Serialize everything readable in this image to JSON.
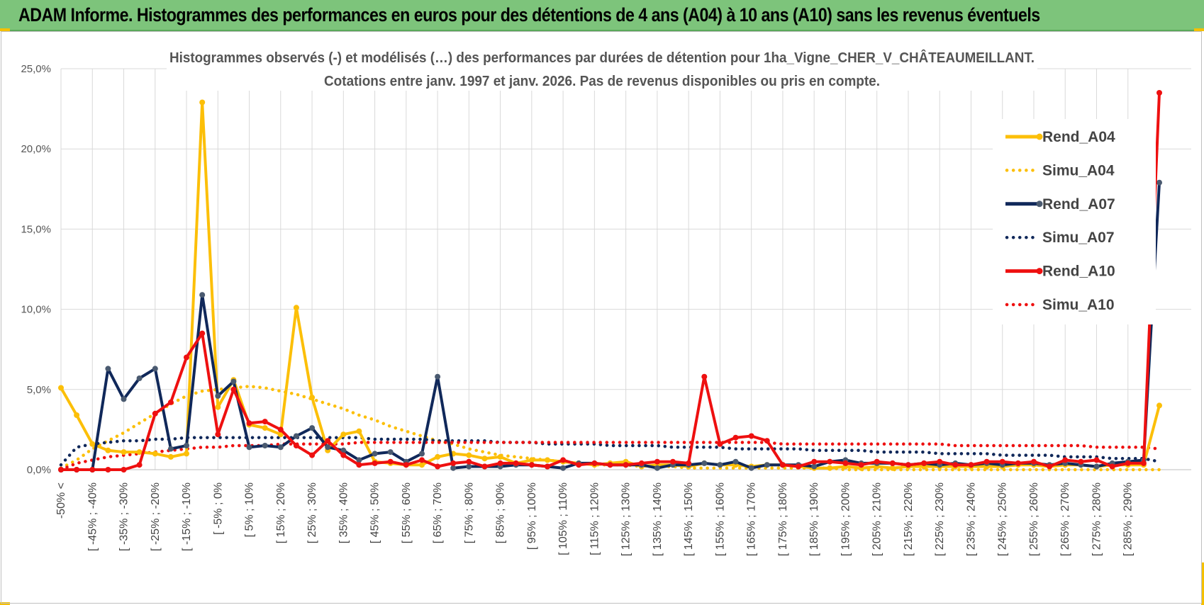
{
  "banner": {
    "title": "ADAM Informe. Histogrammes des performances en euros pour des détentions de 4 ans (A04) à 10 ans (A10) sans les revenus éventuels"
  },
  "colors": {
    "banner_bg": "#7dc47b",
    "corner_accent": "#f5c000",
    "A04": "#fcbf08",
    "A07": "#10285a",
    "A10": "#ee1010",
    "grid": "#d9d9d9"
  },
  "chart_data": {
    "type": "line",
    "title_line1": "Histogrammes observés (-) et modélisés (…) des performances par durées de détention pour 1ha_Vigne_CHER_V_CHÂTEAUMEILLANT.",
    "title_line2": "Cotations entre janv. 1997 et janv. 2026. Pas de revenus disponibles ou pris en compte.",
    "ylim": [
      0,
      25
    ],
    "y_ticks": [
      "0,0%",
      "5,0%",
      "10,0%",
      "15,0%",
      "20,0%",
      "25,0%"
    ],
    "x_tick_labels": [
      "-50% <",
      "[ -45% ; -40%",
      "[ -35% ; -30%",
      "[ -25% ; -20%",
      "[ -15% ; -10%",
      "[ -5% ; 0%",
      "[ 5% ; 10%",
      "[ 15% ; 20%",
      "[ 25% ; 30%",
      "[ 35% ; 40%",
      "[ 45% ; 50%",
      "[ 55% ; 60%",
      "[ 65% ; 70%",
      "[ 75% ; 80%",
      "[ 85% ; 90%",
      "[ 95% ; 100%",
      "[ 105% ; 110%",
      "[ 115% ; 120%",
      "[ 125% ; 130%",
      "[ 135% ; 140%",
      "[ 145% ; 150%",
      "[ 155% ; 160%",
      "[ 165% ; 170%",
      "[ 175% ; 180%",
      "[ 185% ; 190%",
      "[ 195% ; 200%",
      "[ 205% ; 210%",
      "[ 215% ; 220%",
      "[ 225% ; 230%",
      "[ 235% ; 240%",
      "[ 245% ; 250%",
      "[ 255% ; 260%",
      "[ 265% ; 270%",
      "[ 275% ; 280%",
      "[ 285% ; 290%"
    ],
    "n_points": 71,
    "legend": [
      "Rend_A04",
      "Simu_A04",
      "Rend_A07",
      "Simu_A07",
      "Rend_A10",
      "Simu_A10"
    ],
    "legend_position": "right",
    "series": [
      {
        "name": "Rend_A04",
        "style": "solid",
        "color": "#fcbf08",
        "values": [
          5.1,
          3.4,
          1.6,
          1.2,
          1.1,
          1.1,
          1.0,
          0.8,
          1.0,
          22.9,
          3.9,
          5.6,
          2.8,
          2.6,
          2.2,
          10.1,
          4.5,
          1.2,
          2.2,
          2.4,
          0.5,
          0.4,
          0.3,
          0.3,
          0.8,
          1.0,
          0.9,
          0.7,
          0.8,
          0.4,
          0.6,
          0.6,
          0.5,
          0.4,
          0.3,
          0.4,
          0.5,
          0.2,
          0.3,
          0.3,
          0.2,
          0.4,
          0.3,
          0.3,
          0.2,
          0.3,
          0.3,
          0.2,
          0.1,
          0.1,
          0.2,
          0.1,
          0.2,
          0.1,
          0.2,
          0.2,
          0.2,
          0.2,
          0.2,
          0.2,
          0.2,
          0.3,
          0.3,
          0.2,
          0.3,
          0.3,
          0.2,
          0.3,
          0.3,
          0.3,
          4.0
        ]
      },
      {
        "name": "Simu_A04",
        "style": "dotted",
        "color": "#fcbf08",
        "values": [
          0.1,
          0.6,
          1.3,
          1.8,
          2.3,
          2.9,
          3.5,
          4.1,
          4.6,
          4.9,
          5.0,
          5.1,
          5.2,
          5.1,
          4.9,
          4.7,
          4.4,
          4.1,
          3.8,
          3.4,
          3.1,
          2.7,
          2.4,
          2.1,
          1.8,
          1.6,
          1.3,
          1.1,
          0.9,
          0.8,
          0.7,
          0.6,
          0.5,
          0.4,
          0.3,
          0.3,
          0.3,
          0.2,
          0.2,
          0.2,
          0.1,
          0.1,
          0.1,
          0.1,
          0.1,
          0.1,
          0.1,
          0.1,
          0.1,
          0.1,
          0.0,
          0.0,
          0.0,
          0.0,
          0.0,
          0.0,
          0.0,
          0.0,
          0.0,
          0.0,
          0.0,
          0.0,
          0.0,
          0.0,
          0.0,
          0.0,
          0.0,
          0.0,
          0.0,
          0.0,
          0.0
        ]
      },
      {
        "name": "Rend_A07",
        "style": "solid",
        "color": "#10285a",
        "values": [
          0.0,
          0.0,
          0.0,
          6.3,
          4.4,
          5.7,
          6.3,
          1.3,
          1.5,
          10.9,
          4.6,
          5.5,
          1.4,
          1.5,
          1.4,
          2.1,
          2.6,
          1.4,
          1.2,
          0.6,
          1.0,
          1.1,
          0.5,
          1.0,
          5.8,
          0.1,
          0.2,
          0.2,
          0.2,
          0.3,
          0.3,
          0.2,
          0.1,
          0.4,
          0.4,
          0.3,
          0.3,
          0.3,
          0.1,
          0.3,
          0.3,
          0.4,
          0.3,
          0.5,
          0.1,
          0.3,
          0.3,
          0.3,
          0.2,
          0.5,
          0.6,
          0.4,
          0.4,
          0.4,
          0.3,
          0.4,
          0.3,
          0.4,
          0.3,
          0.4,
          0.3,
          0.4,
          0.4,
          0.3,
          0.4,
          0.3,
          0.2,
          0.4,
          0.5,
          0.6,
          17.9
        ]
      },
      {
        "name": "Simu_A07",
        "style": "dotted",
        "color": "#10285a",
        "values": [
          0.3,
          1.4,
          1.6,
          1.7,
          1.8,
          1.8,
          1.9,
          1.9,
          2.0,
          2.0,
          2.0,
          2.0,
          2.0,
          2.0,
          2.0,
          2.0,
          2.0,
          2.0,
          2.0,
          2.0,
          1.9,
          1.9,
          1.9,
          1.9,
          1.8,
          1.8,
          1.8,
          1.8,
          1.7,
          1.7,
          1.7,
          1.6,
          1.6,
          1.6,
          1.6,
          1.5,
          1.5,
          1.5,
          1.5,
          1.4,
          1.4,
          1.4,
          1.4,
          1.3,
          1.3,
          1.3,
          1.3,
          1.3,
          1.2,
          1.2,
          1.2,
          1.2,
          1.1,
          1.1,
          1.1,
          1.1,
          1.0,
          1.0,
          1.0,
          1.0,
          0.9,
          0.9,
          0.9,
          0.9,
          0.8,
          0.8,
          0.8,
          0.7,
          0.7,
          0.7,
          0.5
        ]
      },
      {
        "name": "Rend_A10",
        "style": "solid",
        "color": "#ee1010",
        "values": [
          0.0,
          0.0,
          0.0,
          0.0,
          0.0,
          0.3,
          3.5,
          4.2,
          7.0,
          8.5,
          2.2,
          5.0,
          2.9,
          3.0,
          2.5,
          1.5,
          0.9,
          1.8,
          0.9,
          0.3,
          0.4,
          0.5,
          0.3,
          0.6,
          0.2,
          0.4,
          0.5,
          0.2,
          0.4,
          0.4,
          0.3,
          0.2,
          0.6,
          0.3,
          0.4,
          0.3,
          0.3,
          0.4,
          0.5,
          0.5,
          0.4,
          5.8,
          1.6,
          2.0,
          2.1,
          1.8,
          0.3,
          0.2,
          0.5,
          0.5,
          0.4,
          0.3,
          0.5,
          0.4,
          0.3,
          0.4,
          0.5,
          0.3,
          0.3,
          0.5,
          0.5,
          0.4,
          0.5,
          0.2,
          0.6,
          0.5,
          0.6,
          0.2,
          0.4,
          0.4,
          23.5
        ]
      },
      {
        "name": "Simu_A10",
        "style": "dotted",
        "color": "#ee1010",
        "values": [
          0.0,
          0.4,
          0.6,
          0.8,
          0.9,
          1.0,
          1.1,
          1.2,
          1.3,
          1.4,
          1.4,
          1.5,
          1.5,
          1.5,
          1.6,
          1.6,
          1.6,
          1.6,
          1.6,
          1.7,
          1.7,
          1.7,
          1.7,
          1.7,
          1.7,
          1.7,
          1.7,
          1.7,
          1.7,
          1.7,
          1.7,
          1.7,
          1.7,
          1.7,
          1.7,
          1.7,
          1.7,
          1.7,
          1.7,
          1.7,
          1.7,
          1.7,
          1.7,
          1.7,
          1.7,
          1.7,
          1.6,
          1.6,
          1.6,
          1.6,
          1.6,
          1.6,
          1.6,
          1.6,
          1.6,
          1.6,
          1.6,
          1.5,
          1.5,
          1.5,
          1.5,
          1.5,
          1.5,
          1.5,
          1.5,
          1.5,
          1.4,
          1.4,
          1.4,
          1.4,
          1.3
        ]
      }
    ]
  }
}
